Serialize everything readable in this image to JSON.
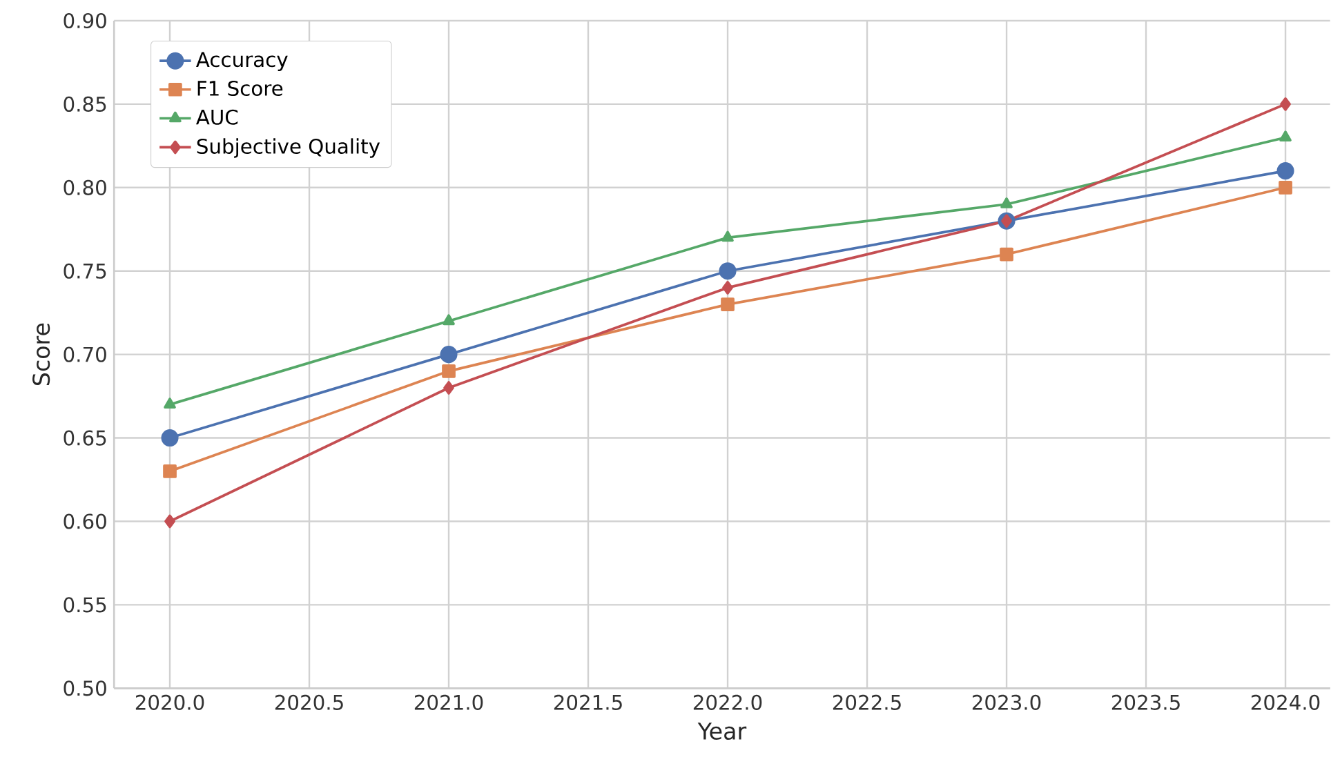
{
  "chart_data": {
    "type": "line",
    "xlabel": "Year",
    "ylabel": "Score",
    "x": [
      2020,
      2021,
      2022,
      2023,
      2024
    ],
    "series": [
      {
        "name": "Accuracy",
        "color": "#4c72b0",
        "marker": "circle",
        "values": [
          0.65,
          0.7,
          0.75,
          0.78,
          0.81
        ]
      },
      {
        "name": "F1 Score",
        "color": "#dd8452",
        "marker": "square",
        "values": [
          0.63,
          0.69,
          0.73,
          0.76,
          0.8
        ]
      },
      {
        "name": "AUC",
        "color": "#55a868",
        "marker": "triangle",
        "values": [
          0.67,
          0.72,
          0.77,
          0.79,
          0.83
        ]
      },
      {
        "name": "Subjective Quality",
        "color": "#c44e52",
        "marker": "diamond",
        "values": [
          0.6,
          0.68,
          0.74,
          0.78,
          0.85
        ]
      }
    ],
    "xlim": [
      2019.8,
      2024.16
    ],
    "ylim": [
      0.5,
      0.9
    ],
    "xticks": [
      {
        "value": 2020,
        "label": "2020.0"
      },
      {
        "value": 2020.5,
        "label": "2020.5"
      },
      {
        "value": 2021,
        "label": "2021.0"
      },
      {
        "value": 2021.5,
        "label": "2021.5"
      },
      {
        "value": 2022,
        "label": "2022.0"
      },
      {
        "value": 2022.5,
        "label": "2022.5"
      },
      {
        "value": 2023,
        "label": "2023.0"
      },
      {
        "value": 2023.5,
        "label": "2023.5"
      },
      {
        "value": 2024,
        "label": "2024.0"
      }
    ],
    "yticks": [
      {
        "value": 0.5,
        "label": "0.50"
      },
      {
        "value": 0.55,
        "label": "0.55"
      },
      {
        "value": 0.6,
        "label": "0.60"
      },
      {
        "value": 0.65,
        "label": "0.65"
      },
      {
        "value": 0.7,
        "label": "0.70"
      },
      {
        "value": 0.75,
        "label": "0.75"
      },
      {
        "value": 0.8,
        "label": "0.80"
      },
      {
        "value": 0.85,
        "label": "0.85"
      },
      {
        "value": 0.9,
        "label": "0.90"
      }
    ],
    "grid": true,
    "legend": "top left",
    "line_style": "solid"
  }
}
